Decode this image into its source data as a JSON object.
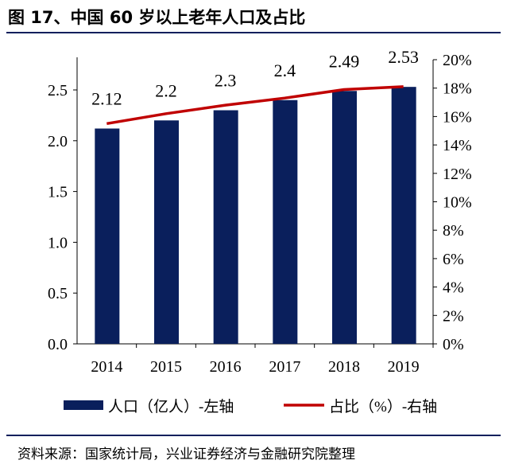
{
  "title": "图 17、中国 60 岁以上老年人口及占比",
  "source": "资料来源：国家统计局，兴业证券经济与金融研究院整理",
  "chart_data": {
    "type": "bar+line",
    "categories": [
      "2014",
      "2015",
      "2016",
      "2017",
      "2018",
      "2019"
    ],
    "series": [
      {
        "name": "人口（亿人）-左轴",
        "type": "bar",
        "axis": "left",
        "values": [
          2.12,
          2.2,
          2.3,
          2.4,
          2.49,
          2.53
        ],
        "labels": [
          "2.12",
          "2.2",
          "2.3",
          "2.4",
          "2.49",
          "2.53"
        ],
        "color": "#0a1f5c"
      },
      {
        "name": "占比（%）-右轴",
        "type": "line",
        "axis": "right",
        "values": [
          15.5,
          16.2,
          16.8,
          17.3,
          17.9,
          18.1
        ],
        "color": "#c00000"
      }
    ],
    "left_axis": {
      "ylim": [
        0,
        2.5
      ],
      "ticks": [
        "0.0",
        "0.5",
        "1.0",
        "1.5",
        "2.0",
        "2.5"
      ]
    },
    "right_axis": {
      "ylim": [
        0,
        20
      ],
      "ticks": [
        "0%",
        "2%",
        "4%",
        "6%",
        "8%",
        "10%",
        "12%",
        "14%",
        "16%",
        "18%",
        "20%"
      ]
    },
    "grid": false,
    "legend": "bottom"
  }
}
